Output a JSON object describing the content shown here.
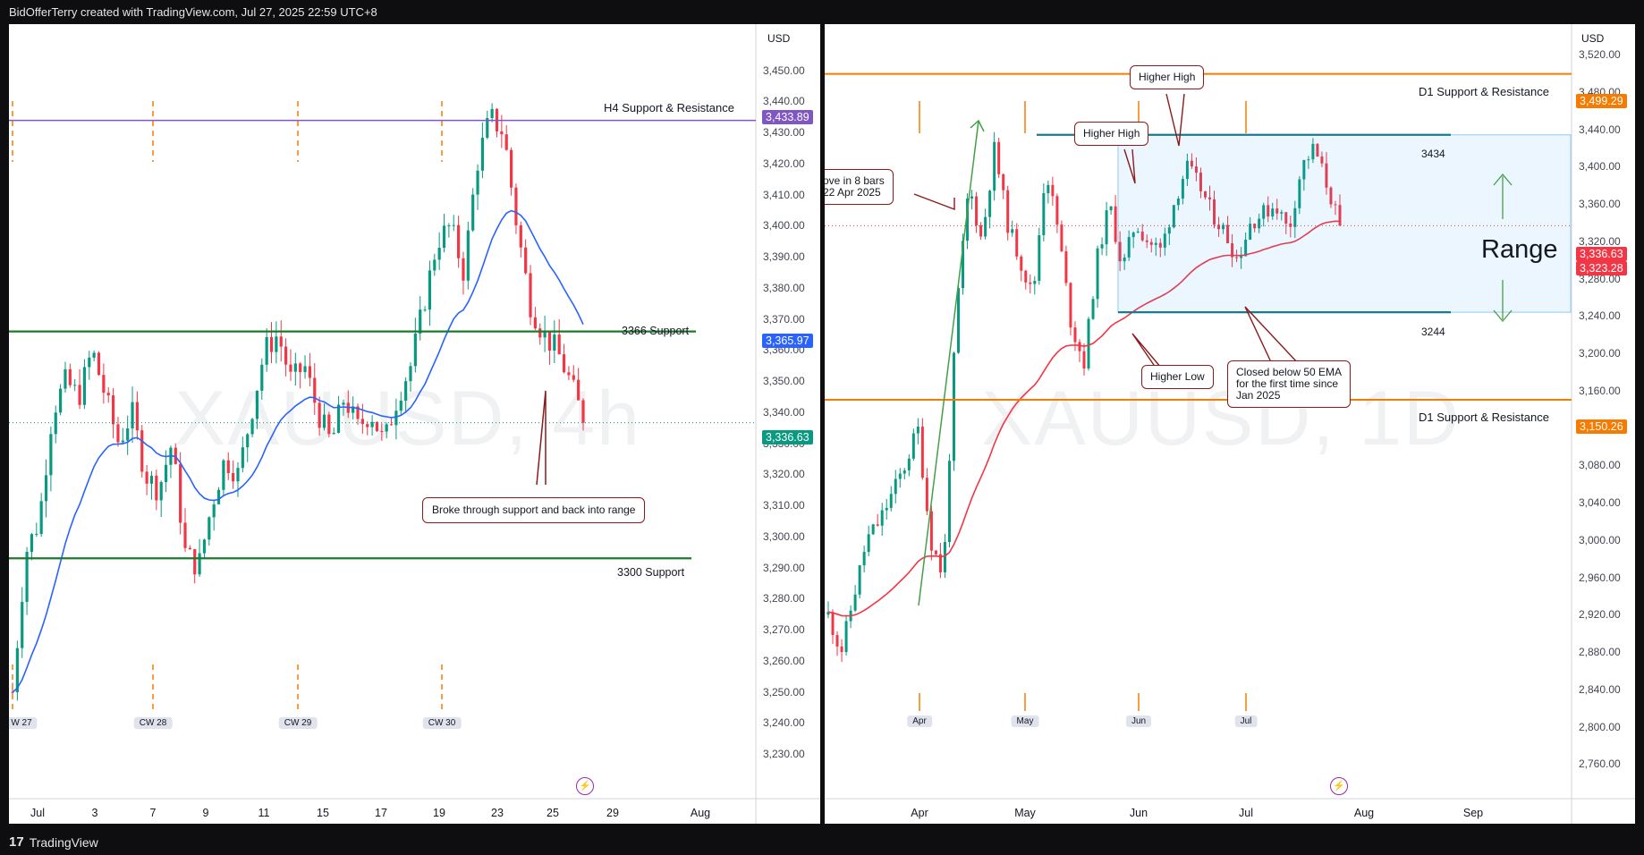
{
  "header": {
    "caption": "BidOfferTerry created with TradingView.com, Jul 27, 2025 22:59 UTC+8"
  },
  "footer": {
    "brand": "TradingView"
  },
  "colors": {
    "up": "#089981",
    "down": "#f23645",
    "ema_blue": "#2962ff",
    "ema_red": "#f23645",
    "support_green": "#1b7a2b",
    "resistance_orange": "#f57c00",
    "callout_border": "#8b1a1a"
  },
  "chart_data": [
    {
      "type": "candlestick",
      "watermark": "XAUUSD, 4h",
      "unit": "USD",
      "ylim": [
        3222,
        3462
      ],
      "y_ticks": [
        "3,450.00",
        "3,440.00",
        "3,430.00",
        "3,420.00",
        "3,410.00",
        "3,400.00",
        "3,390.00",
        "3,380.00",
        "3,370.00",
        "3,360.00",
        "3,350.00",
        "3,340.00",
        "3,330.00",
        "3,320.00",
        "3,310.00",
        "3,300.00",
        "3,290.00",
        "3,280.00",
        "3,270.00",
        "3,260.00",
        "3,250.00",
        "3,240.00",
        "3,230.00"
      ],
      "x_ticks": [
        "Jul",
        "3",
        "7",
        "9",
        "11",
        "15",
        "17",
        "19",
        "23",
        "25",
        "29",
        "Aug"
      ],
      "week_markers": [
        "W 27",
        "CW 28",
        "CW 29",
        "CW 30"
      ],
      "price_tags": {
        "resistance": "3,433.89",
        "ema": "3,365.97",
        "last": "3,336.63"
      },
      "levels": [
        {
          "label": "H4 Support & Resistance",
          "value": 3433.89
        },
        {
          "label": "3366 Support",
          "value": 3366
        },
        {
          "label": "3300 Support",
          "value": 3293
        }
      ],
      "annotations": [
        {
          "text": "Broke through support and back into range"
        }
      ],
      "last_close": 3336.63,
      "anchors": [
        3250,
        3295,
        3305,
        3340,
        3350,
        3345,
        3360,
        3345,
        3330,
        3340,
        3320,
        3315,
        3330,
        3295,
        3290,
        3310,
        3325,
        3320,
        3340,
        3360,
        3365,
        3350,
        3355,
        3340,
        3330,
        3345,
        3335,
        3340,
        3330,
        3345,
        3355,
        3375,
        3395,
        3400,
        3385,
        3420,
        3435,
        3430,
        3400,
        3375,
        3365,
        3360,
        3350,
        3338
      ]
    },
    {
      "type": "candlestick",
      "watermark": "XAUUSD, 1D",
      "unit": "USD",
      "ylim": [
        2744,
        3543
      ],
      "y_ticks": [
        "3,520.00",
        "3,480.00",
        "3,440.00",
        "3,400.00",
        "3,360.00",
        "3,320.00",
        "3,280.00",
        "3,240.00",
        "3,200.00",
        "3,160.00",
        "3,120.00",
        "3,080.00",
        "3,040.00",
        "3,000.00",
        "2,960.00",
        "2,920.00",
        "2,880.00",
        "2,840.00",
        "2,800.00",
        "2,760.00"
      ],
      "x_ticks": [
        "Apr",
        "May",
        "Jun",
        "Jul",
        "Aug",
        "Sep"
      ],
      "month_markers": [
        "Apr",
        "May",
        "Jun",
        "Jul"
      ],
      "price_tags": {
        "resistance": "3,499.29",
        "last": "3,336.63",
        "ema": "3,323.28",
        "support": "3,150.26"
      },
      "levels": [
        {
          "label": "D1 Support & Resistance",
          "value": 3499.29
        },
        {
          "label": "D1 Support & Resistance",
          "value": 3150.26
        },
        {
          "label": "3434",
          "value": 3434
        },
        {
          "label": "3244",
          "value": 3244
        }
      ],
      "range_label": "Range",
      "annotations": [
        {
          "text": "Higher High"
        },
        {
          "text": "Higher High"
        },
        {
          "text": "Higher Low"
        },
        {
          "text": "ove in 8 bars"
        },
        {
          "text": "22 Apr 2025"
        },
        {
          "text": "Closed below 50 EMA"
        },
        {
          "text": "for the first time since"
        },
        {
          "text": "Jan 2025"
        }
      ],
      "last_close": 3336.63,
      "anchors": [
        2920,
        2880,
        2940,
        3000,
        3020,
        3050,
        3080,
        3120,
        3000,
        2960,
        3240,
        3380,
        3320,
        3420,
        3340,
        3300,
        3260,
        3400,
        3330,
        3230,
        3190,
        3300,
        3360,
        3290,
        3340,
        3320,
        3310,
        3360,
        3400,
        3380,
        3350,
        3330,
        3300,
        3340,
        3350,
        3360,
        3330,
        3400,
        3420,
        3380,
        3336
      ]
    }
  ]
}
